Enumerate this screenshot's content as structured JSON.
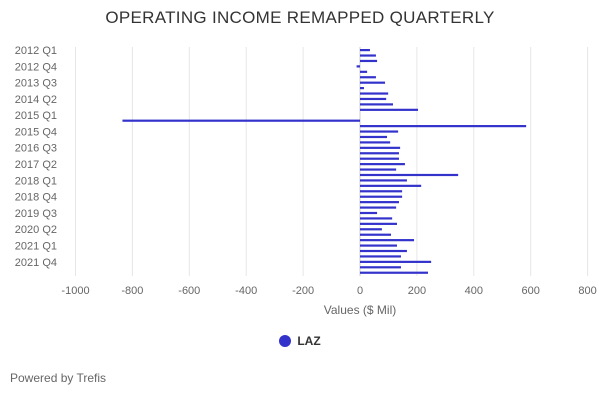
{
  "chart_data": {
    "type": "bar",
    "orientation": "horizontal",
    "title": "OPERATING INCOME REMAPPED QUARTERLY",
    "xlabel": "Values ($ Mil)",
    "ylabel": "",
    "xlim": [
      -1000,
      800
    ],
    "xticks": [
      -1000,
      -800,
      -600,
      -400,
      -200,
      0,
      200,
      400,
      600,
      800
    ],
    "grid": true,
    "legend_position": "bottom",
    "categories": [
      "2012 Q1",
      "2012 Q2",
      "2012 Q3",
      "2012 Q4",
      "2013 Q1",
      "2013 Q2",
      "2013 Q3",
      "2013 Q4",
      "2014 Q1",
      "2014 Q2",
      "2014 Q3",
      "2014 Q4",
      "2015 Q1",
      "2015 Q2",
      "2015 Q3",
      "2015 Q4",
      "2016 Q1",
      "2016 Q2",
      "2016 Q3",
      "2016 Q4",
      "2017 Q1",
      "2017 Q2",
      "2017 Q3",
      "2017 Q4",
      "2018 Q1",
      "2018 Q2",
      "2018 Q3",
      "2018 Q4",
      "2019 Q1",
      "2019 Q2",
      "2019 Q3",
      "2019 Q4",
      "2020 Q1",
      "2020 Q2",
      "2020 Q3",
      "2020 Q4",
      "2021 Q1",
      "2021 Q2",
      "2021 Q3",
      "2021 Q4",
      "2022 Q1",
      "2022 Q2"
    ],
    "visible_category_labels": [
      "2012 Q1",
      "2012 Q4",
      "2013 Q3",
      "2014 Q2",
      "2015 Q1",
      "2015 Q4",
      "2016 Q3",
      "2017 Q2",
      "2018 Q1",
      "2018 Q4",
      "2019 Q3",
      "2020 Q2",
      "2021 Q1",
      "2021 Q4"
    ],
    "series": [
      {
        "name": "LAZ",
        "color": "#3333cc",
        "values": [
          35,
          56,
          60,
          -12,
          25,
          56,
          88,
          14,
          99,
          92,
          116,
          204,
          0,
          -835,
          584,
          134,
          95,
          106,
          141,
          137,
          137,
          158,
          127,
          345,
          165,
          215,
          148,
          148,
          137,
          127,
          60,
          113,
          130,
          77,
          109,
          190,
          130,
          165,
          144,
          250,
          144,
          239
        ]
      }
    ]
  },
  "footer": "Powered by Trefis"
}
